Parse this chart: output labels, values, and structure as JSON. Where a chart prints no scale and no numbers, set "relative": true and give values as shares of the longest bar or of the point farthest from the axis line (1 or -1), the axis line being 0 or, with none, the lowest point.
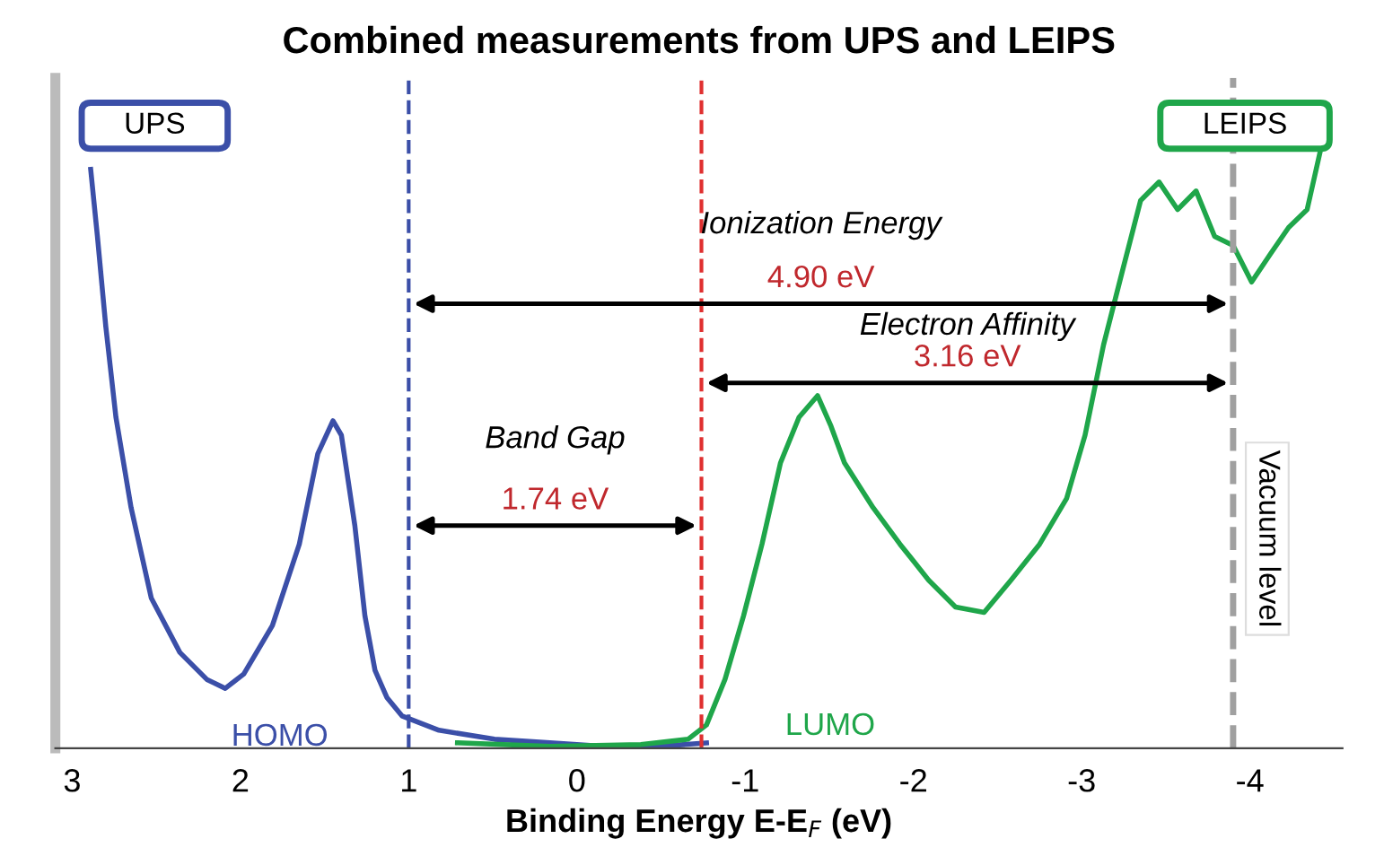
{
  "chart_data": {
    "type": "line",
    "title": "Combined measurements from UPS and LEIPS",
    "xlabel": "Binding Energy E-E$_{F}$ (eV)",
    "relative": true,
    "xlim": [
      3.1,
      -4.55
    ],
    "xticks": [
      3,
      2,
      1,
      0,
      -1,
      -2,
      -3,
      -4
    ],
    "grid": false,
    "marker": "none",
    "line_style": "solid",
    "series": [
      {
        "name": "UPS",
        "color": "#3b4fa8",
        "x": [
          2.89,
          2.85,
          2.8,
          2.74,
          2.65,
          2.53,
          2.36,
          2.2,
          2.09,
          1.98,
          1.81,
          1.65,
          1.54,
          1.45,
          1.4,
          1.32,
          1.26,
          1.2,
          1.13,
          1.04,
          0.82,
          0.49,
          0.16,
          -0.16,
          -0.49,
          -0.77
        ],
        "values": [
          0.967,
          0.855,
          0.704,
          0.553,
          0.402,
          0.251,
          0.16,
          0.115,
          0.1,
          0.124,
          0.205,
          0.341,
          0.492,
          0.547,
          0.523,
          0.372,
          0.221,
          0.13,
          0.085,
          0.054,
          0.03,
          0.015,
          0.009,
          0.003,
          0.003,
          0.009
        ]
      },
      {
        "name": "LEIPS",
        "color": "#1fa64a",
        "x": [
          0.71,
          0.16,
          -0.38,
          -0.66,
          -0.77,
          -0.88,
          -0.99,
          -1.1,
          -1.21,
          -1.32,
          -1.43,
          -1.51,
          -1.59,
          -1.76,
          -1.92,
          -2.09,
          -2.25,
          -2.42,
          -2.58,
          -2.75,
          -2.91,
          -3.02,
          -3.13,
          -3.24,
          -3.35,
          -3.46,
          -3.57,
          -3.68,
          -3.79,
          -3.9,
          -4.01,
          -4.12,
          -4.23,
          -4.34,
          -4.42
        ],
        "values": [
          0.009,
          0.003,
          0.006,
          0.015,
          0.039,
          0.115,
          0.221,
          0.341,
          0.477,
          0.553,
          0.589,
          0.538,
          0.477,
          0.402,
          0.341,
          0.281,
          0.236,
          0.227,
          0.281,
          0.341,
          0.417,
          0.523,
          0.674,
          0.795,
          0.915,
          0.946,
          0.9,
          0.931,
          0.855,
          0.84,
          0.779,
          0.825,
          0.87,
          0.9,
          1.0
        ]
      }
    ],
    "ref_lines": [
      {
        "axis": "x",
        "value": 1.0,
        "color": "#3b4fa8",
        "line_style": "dashed"
      },
      {
        "axis": "x",
        "value": -0.74,
        "color": "#e03030",
        "line_style": "dashed"
      },
      {
        "axis": "x",
        "value": -3.9,
        "color": "#a0a0a0",
        "line_style": "dashed",
        "label": "Vacuum level"
      }
    ],
    "annotations": [
      "Ionization Energy",
      "4.90 eV",
      "Electron Affinity",
      "3.16 eV",
      "Band Gap",
      "1.74 eV",
      "HOMO",
      "LUMO"
    ]
  }
}
